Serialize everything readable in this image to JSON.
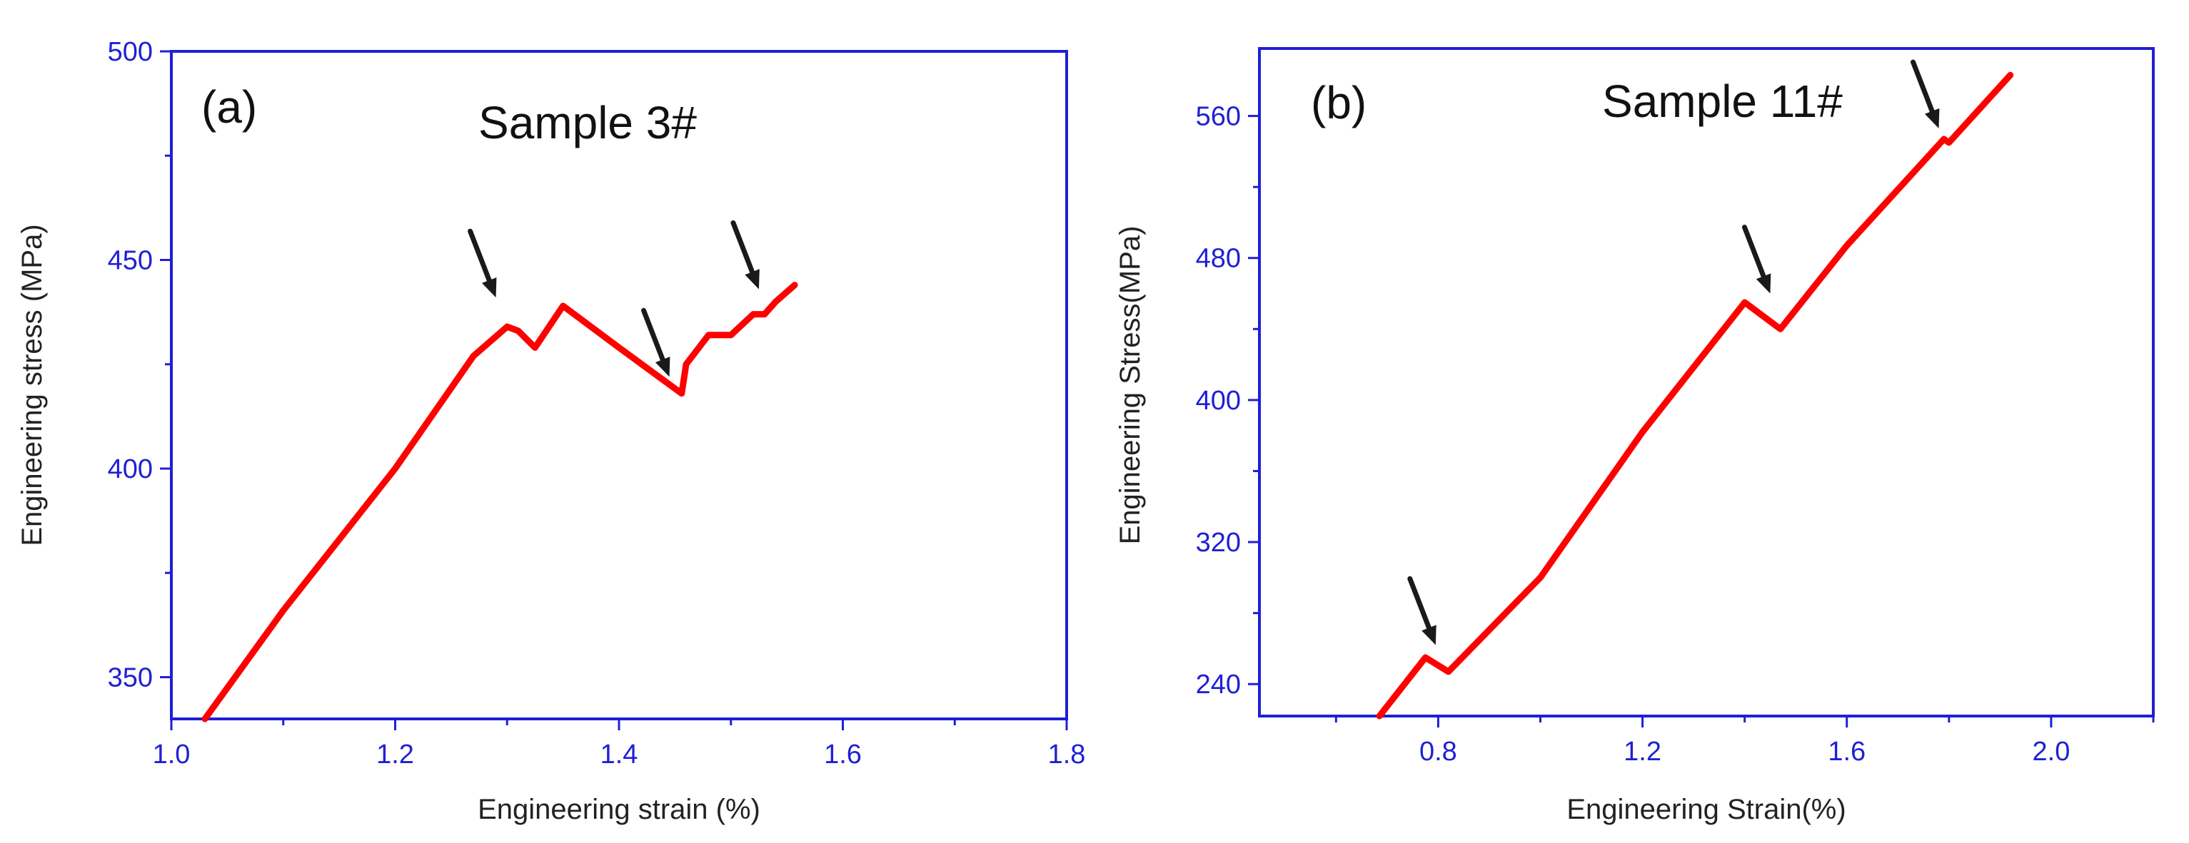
{
  "colors": {
    "axis": "#1f1fd6",
    "curve": "#ff0000",
    "arrow": "#1a1a1a",
    "text": "#111111"
  },
  "chart_data": [
    {
      "type": "line",
      "panel_label": "(a)",
      "title": "Sample 3#",
      "xlabel": "Engineering strain (%)",
      "ylabel": "Engineering stress (MPa)",
      "xlim": [
        1.0,
        1.8
      ],
      "ylim": [
        340,
        500
      ],
      "xticks": [
        1.0,
        1.2,
        1.4,
        1.6,
        1.8
      ],
      "xtick_labels": [
        "1.0",
        "1.2",
        "1.4",
        "1.6",
        "1.8"
      ],
      "yticks": [
        350,
        400,
        450,
        500
      ],
      "ytick_labels": [
        "350",
        "400",
        "450",
        "500"
      ],
      "grid": false,
      "series": [
        {
          "name": "Sample 3#",
          "x": [
            1.03,
            1.1,
            1.2,
            1.27,
            1.3,
            1.31,
            1.325,
            1.35,
            1.4,
            1.456,
            1.46,
            1.48,
            1.5,
            1.52,
            1.53,
            1.54,
            1.557
          ],
          "y": [
            340,
            366,
            400,
            427,
            434,
            433,
            429,
            439,
            429,
            418,
            425,
            432,
            432,
            437,
            437,
            440,
            444
          ]
        }
      ],
      "annotations": [
        {
          "type": "arrow",
          "x": 1.29,
          "y": 441
        },
        {
          "type": "arrow",
          "x": 1.445,
          "y": 422
        },
        {
          "type": "arrow",
          "x": 1.525,
          "y": 443
        }
      ]
    },
    {
      "type": "line",
      "panel_label": "(b)",
      "title": "Sample 11#",
      "xlabel": "Engineering Strain(%)",
      "ylabel": "Engineering Stress(MPa)",
      "xlim": [
        0.45,
        2.2
      ],
      "ylim": [
        222,
        598
      ],
      "xticks": [
        0.8,
        1.2,
        1.6,
        2.0
      ],
      "xtick_labels": [
        "0.8",
        "1.2",
        "1.6",
        "2.0"
      ],
      "yticks": [
        240,
        320,
        400,
        480,
        560
      ],
      "ytick_labels": [
        "240",
        "320",
        "400",
        "480",
        "560"
      ],
      "grid": false,
      "series": [
        {
          "name": "Sample 11#",
          "x": [
            0.685,
            0.775,
            0.82,
            1.0,
            1.2,
            1.4,
            1.47,
            1.6,
            1.79,
            1.8,
            1.92
          ],
          "y": [
            222,
            255,
            247,
            300,
            382,
            455,
            440,
            487,
            547,
            545,
            583
          ]
        }
      ],
      "annotations": [
        {
          "type": "arrow",
          "x": 0.795,
          "y": 262
        },
        {
          "type": "arrow",
          "x": 1.45,
          "y": 460
        },
        {
          "type": "arrow",
          "x": 1.78,
          "y": 553
        }
      ]
    }
  ]
}
